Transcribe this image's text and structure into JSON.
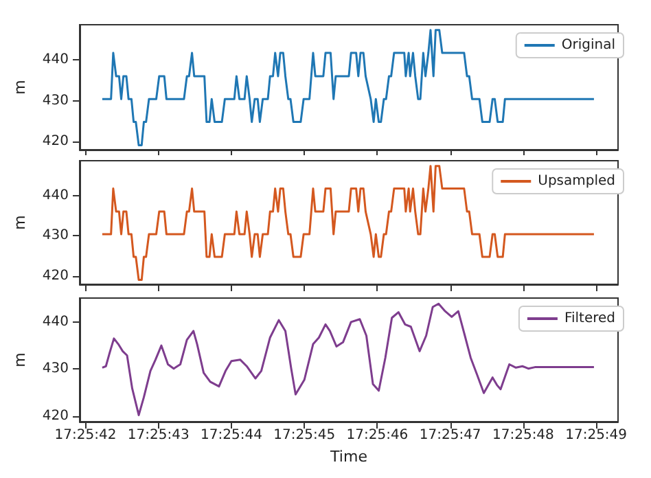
{
  "chart_data": [
    {
      "type": "line",
      "ylabel": "m",
      "legend": "top right",
      "grid": false,
      "tick_labels": "y",
      "xlim": [
        17.4283111,
        17.4303611
      ],
      "ylim": [
        418,
        448.6
      ],
      "yticks": [
        420,
        430,
        440
      ],
      "xticks": [
        {
          "value": 17.4283333,
          "label": null
        },
        {
          "value": 17.4286111,
          "label": null
        },
        {
          "value": 17.4288889,
          "label": null
        },
        {
          "value": 17.4291667,
          "label": null
        },
        {
          "value": 17.4294444,
          "label": null
        },
        {
          "value": 17.4297222,
          "label": null
        },
        {
          "value": 17.43,
          "label": null
        },
        {
          "value": 17.4302778,
          "label": null
        }
      ],
      "series": [
        {
          "name": "Original",
          "color": "#1f77b4",
          "x": [
            17.4283972,
            17.4284305,
            17.4284389,
            17.42845,
            17.4284611,
            17.4284694,
            17.4284777,
            17.4284889,
            17.4284972,
            17.4285083,
            17.4285166,
            17.428525,
            17.4285361,
            17.4285472,
            17.4285555,
            17.4285639,
            17.428575,
            17.4286027,
            17.4286139,
            17.4286333,
            17.4286416,
            17.4287083,
            17.4287194,
            17.4287277,
            17.4287389,
            17.4287472,
            17.4287861,
            17.4287944,
            17.4288055,
            17.4288139,
            17.428825,
            17.4288527,
            17.4288639,
            17.4289,
            17.4289083,
            17.4289194,
            17.4289389,
            17.4289472,
            17.4289583,
            17.4289666,
            17.4289777,
            17.4289889,
            17.4289972,
            17.4290083,
            17.4290277,
            17.4290361,
            17.4290472,
            17.4290555,
            17.4290666,
            17.429075,
            17.4290861,
            17.4290944,
            17.4291055,
            17.4291139,
            17.429125,
            17.4291528,
            17.4291639,
            17.4291861,
            17.4292,
            17.4292083,
            17.4292389,
            17.4292472,
            17.4292666,
            17.4292778,
            17.4292861,
            17.4293361,
            17.4293444,
            17.4293639,
            17.4293722,
            17.4293805,
            17.4293916,
            17.4294,
            17.4294194,
            17.4294305,
            17.4294389,
            17.42945,
            17.4294583,
            17.4294694,
            17.4294778,
            17.4294889,
            17.4294972,
            17.4295083,
            17.4295472,
            17.4295528,
            17.4295639,
            17.4295694,
            17.4295805,
            17.4295889,
            17.4296,
            17.4296083,
            17.4296194,
            17.4296278,
            17.4296389,
            17.4296472,
            17.4296583,
            17.4296666,
            17.4296805,
            17.4296916,
            17.429775,
            17.4297861,
            17.4297944,
            17.4298055,
            17.4298333,
            17.4298444,
            17.4298722,
            17.4298833,
            17.4298916,
            17.4299028,
            17.4299222,
            17.4299305,
            17.4302694
          ],
          "values": [
            430.4,
            430.4,
            441.7,
            436,
            436,
            430.4,
            436,
            436,
            430.4,
            430.4,
            424.8,
            424.8,
            419.1,
            419.1,
            424.8,
            424.8,
            430.4,
            430.4,
            436,
            436,
            430.4,
            430.4,
            436,
            436,
            441.7,
            436,
            436,
            424.8,
            424.8,
            430.4,
            424.8,
            424.8,
            430.4,
            430.4,
            436,
            430.4,
            430.4,
            436,
            430.4,
            424.8,
            430.4,
            430.4,
            424.8,
            430.4,
            430.4,
            436,
            436,
            441.7,
            436,
            441.7,
            441.7,
            436,
            430.4,
            430.4,
            424.8,
            424.8,
            430.4,
            430.4,
            441.7,
            436,
            436,
            441.7,
            441.7,
            430.4,
            436,
            436,
            441.7,
            441.7,
            436,
            441.7,
            441.7,
            436,
            430.4,
            424.8,
            430.4,
            424.8,
            424.8,
            430.4,
            430.4,
            436,
            436,
            441.7,
            441.7,
            436,
            441.7,
            436,
            441.7,
            436,
            430.4,
            430.4,
            441.7,
            436,
            441.7,
            447.3,
            436,
            447.3,
            447.3,
            441.7,
            441.7,
            436,
            436,
            430.4,
            430.4,
            424.8,
            424.8,
            430.4,
            430.4,
            424.8,
            424.8,
            430.4,
            430.4
          ]
        }
      ]
    },
    {
      "type": "line",
      "ylabel": "m",
      "legend": "top right",
      "grid": false,
      "tick_labels": "y",
      "xlim": [
        17.4283111,
        17.4303611
      ],
      "ylim": [
        418,
        448.6
      ],
      "yticks": [
        420,
        430,
        440
      ],
      "xticks": [
        {
          "value": 17.4283333,
          "label": null
        },
        {
          "value": 17.4286111,
          "label": null
        },
        {
          "value": 17.4288889,
          "label": null
        },
        {
          "value": 17.4291667,
          "label": null
        },
        {
          "value": 17.4294444,
          "label": null
        },
        {
          "value": 17.4297222,
          "label": null
        },
        {
          "value": 17.43,
          "label": null
        },
        {
          "value": 17.4302778,
          "label": null
        }
      ],
      "series": [
        {
          "name": "Upsampled",
          "color": "#d4581f",
          "x": [
            17.4283972,
            17.4284305,
            17.4284389,
            17.42845,
            17.4284611,
            17.4284694,
            17.4284777,
            17.4284889,
            17.4284972,
            17.4285083,
            17.4285166,
            17.428525,
            17.4285361,
            17.4285472,
            17.4285555,
            17.4285639,
            17.428575,
            17.4286027,
            17.4286139,
            17.4286333,
            17.4286416,
            17.4287083,
            17.4287194,
            17.4287277,
            17.4287389,
            17.4287472,
            17.4287861,
            17.4287944,
            17.4288055,
            17.4288139,
            17.428825,
            17.4288527,
            17.4288639,
            17.4289,
            17.4289083,
            17.4289194,
            17.4289389,
            17.4289472,
            17.4289583,
            17.4289666,
            17.4289777,
            17.4289889,
            17.4289972,
            17.4290083,
            17.4290277,
            17.4290361,
            17.4290472,
            17.4290555,
            17.4290666,
            17.429075,
            17.4290861,
            17.4290944,
            17.4291055,
            17.4291139,
            17.429125,
            17.4291528,
            17.4291639,
            17.4291861,
            17.4292,
            17.4292083,
            17.4292389,
            17.4292472,
            17.4292666,
            17.4292778,
            17.4292861,
            17.4293361,
            17.4293444,
            17.4293639,
            17.4293722,
            17.4293805,
            17.4293916,
            17.4294,
            17.4294194,
            17.4294305,
            17.4294389,
            17.42945,
            17.4294583,
            17.4294694,
            17.4294778,
            17.4294889,
            17.4294972,
            17.4295083,
            17.4295472,
            17.4295528,
            17.4295639,
            17.4295694,
            17.4295805,
            17.4295889,
            17.4296,
            17.4296083,
            17.4296194,
            17.4296278,
            17.4296389,
            17.4296472,
            17.4296583,
            17.4296666,
            17.4296805,
            17.4296916,
            17.429775,
            17.4297861,
            17.4297944,
            17.4298055,
            17.4298333,
            17.4298444,
            17.4298722,
            17.4298833,
            17.4298916,
            17.4299028,
            17.4299222,
            17.4299305,
            17.4302694
          ],
          "values": [
            430.4,
            430.4,
            441.7,
            436,
            436,
            430.4,
            436,
            436,
            430.4,
            430.4,
            424.8,
            424.8,
            419.1,
            419.1,
            424.8,
            424.8,
            430.4,
            430.4,
            436,
            436,
            430.4,
            430.4,
            436,
            436,
            441.7,
            436,
            436,
            424.8,
            424.8,
            430.4,
            424.8,
            424.8,
            430.4,
            430.4,
            436,
            430.4,
            430.4,
            436,
            430.4,
            424.8,
            430.4,
            430.4,
            424.8,
            430.4,
            430.4,
            436,
            436,
            441.7,
            436,
            441.7,
            441.7,
            436,
            430.4,
            430.4,
            424.8,
            424.8,
            430.4,
            430.4,
            441.7,
            436,
            436,
            441.7,
            441.7,
            430.4,
            436,
            436,
            441.7,
            441.7,
            436,
            441.7,
            441.7,
            436,
            430.4,
            424.8,
            430.4,
            424.8,
            424.8,
            430.4,
            430.4,
            436,
            436,
            441.7,
            441.7,
            436,
            441.7,
            436,
            441.7,
            436,
            430.4,
            430.4,
            441.7,
            436,
            441.7,
            447.3,
            436,
            447.3,
            447.3,
            441.7,
            441.7,
            436,
            436,
            430.4,
            430.4,
            424.8,
            424.8,
            430.4,
            430.4,
            424.8,
            424.8,
            430.4,
            430.4
          ]
        }
      ]
    },
    {
      "type": "line",
      "ylabel": "m",
      "xlabel": "Time",
      "legend": "top right",
      "grid": false,
      "xlim": [
        17.4283111,
        17.4303611
      ],
      "ylim": [
        418.8,
        445.1
      ],
      "yticks": [
        420,
        430,
        440
      ],
      "xticks": [
        {
          "value": 17.4283333,
          "label": "17:25:42"
        },
        {
          "value": 17.4286111,
          "label": "17:25:43"
        },
        {
          "value": 17.4288889,
          "label": "17:25:44"
        },
        {
          "value": 17.4291667,
          "label": "17:25:45"
        },
        {
          "value": 17.4294444,
          "label": "17:25:46"
        },
        {
          "value": 17.4297222,
          "label": "17:25:47"
        },
        {
          "value": 17.43,
          "label": "17:25:48"
        },
        {
          "value": 17.4302778,
          "label": "17:25:49"
        }
      ],
      "series": [
        {
          "name": "Filtered",
          "color": "#7e3d8e",
          "x": [
            17.4283972,
            17.4284111,
            17.428425,
            17.4284416,
            17.4284583,
            17.428475,
            17.4284916,
            17.4285111,
            17.4285361,
            17.4285555,
            17.4285805,
            17.4286,
            17.4286222,
            17.4286472,
            17.4286694,
            17.4286944,
            17.4287194,
            17.4287444,
            17.4287583,
            17.4287833,
            17.4288083,
            17.4288416,
            17.4288666,
            17.4288889,
            17.4289222,
            17.4289472,
            17.4289805,
            17.4290027,
            17.4290361,
            17.4290694,
            17.4290944,
            17.4291166,
            17.4291333,
            17.4291666,
            17.4292,
            17.4292222,
            17.4292472,
            17.4292639,
            17.4292889,
            17.4293139,
            17.4293444,
            17.4293778,
            17.4294028,
            17.4294278,
            17.42945,
            17.429475,
            17.4295,
            17.429525,
            17.42955,
            17.4295722,
            17.4296055,
            17.4296305,
            17.4296555,
            17.4296778,
            17.4297028,
            17.4297278,
            17.4297528,
            17.4297778,
            17.4298,
            17.429825,
            17.42985,
            17.4298833,
            17.4299,
            17.4299139,
            17.4299472,
            17.4299722,
            17.4299972,
            17.4300194,
            17.4300444,
            17.4302694
          ],
          "values": [
            430.3,
            430.6,
            433.4,
            436.5,
            435.3,
            433.8,
            432.9,
            425.9,
            420.2,
            424,
            429.6,
            432,
            435,
            431,
            430.1,
            431,
            436.2,
            438.1,
            435.3,
            429.2,
            427.3,
            426.3,
            429.6,
            431.7,
            432,
            430.6,
            428,
            429.6,
            436.7,
            440.4,
            438.1,
            430.1,
            424.6,
            427.7,
            435.3,
            436.7,
            439.5,
            438.1,
            434.8,
            435.7,
            440,
            440.6,
            437.1,
            426.8,
            425.4,
            432.4,
            440.9,
            442.1,
            439.5,
            439,
            433.8,
            437.1,
            443.2,
            443.9,
            442.3,
            441.1,
            442.3,
            437.1,
            432.4,
            428.7,
            424.9,
            428.2,
            426.6,
            425.7,
            431,
            430.3,
            430.6,
            430.1,
            430.4,
            430.4
          ]
        }
      ]
    }
  ]
}
